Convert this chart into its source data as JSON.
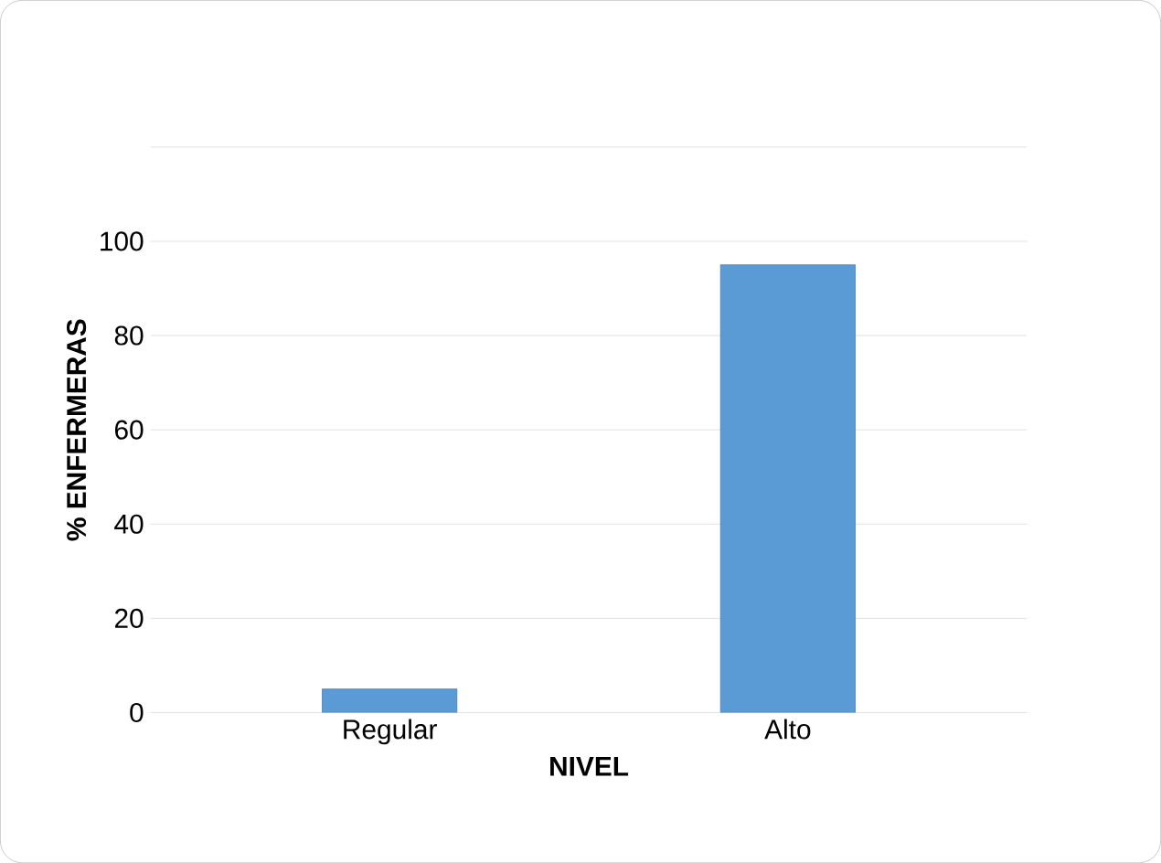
{
  "chart_data": {
    "type": "bar",
    "xlabel": "NIVEL",
    "ylabel": "% ENFERMERAS",
    "categories": [
      "Regular",
      "Alto"
    ],
    "values": [
      5,
      95
    ],
    "color": "#5b9bd5",
    "ylim": [
      0,
      120
    ],
    "yticks": [
      0,
      20,
      40,
      60,
      80,
      100,
      {
        "value": 120,
        "label": null
      }
    ],
    "grid": "y"
  }
}
